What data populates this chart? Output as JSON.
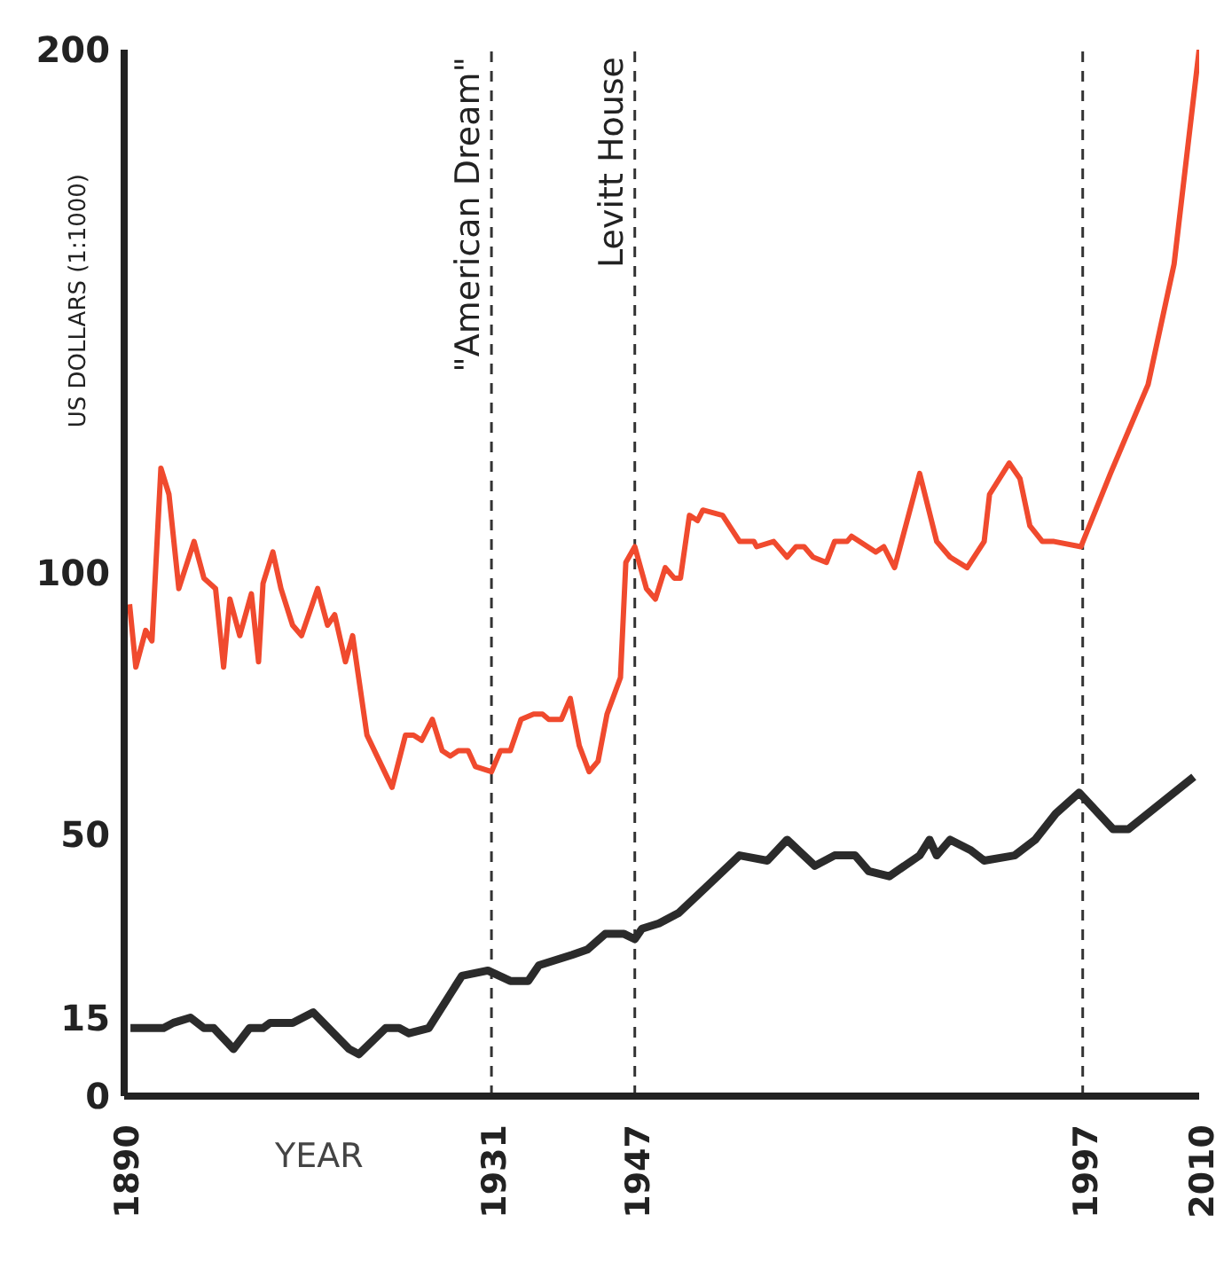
{
  "chart_data": {
    "type": "line",
    "xlabel": "YEAR",
    "ylabel": "US DOLLARS (1:1000)",
    "xlim": [
      1890,
      2010
    ],
    "xticks": [
      1890,
      1931,
      1947,
      1997,
      2010
    ],
    "ylim": [
      0,
      200
    ],
    "yticks": [
      0,
      15,
      50,
      100,
      200
    ],
    "marker": "none",
    "grid": false,
    "series": [
      {
        "color": "#f04a2e",
        "x": [
          1890.6,
          1891.3,
          1892.4,
          1893.1,
          1894.1,
          1895.0,
          1896.1,
          1897.8,
          1898.9,
          1900.2,
          1901.1,
          1901.8,
          1902.9,
          1904.2,
          1905.0,
          1905.5,
          1906.6,
          1907.5,
          1908.8,
          1909.8,
          1911.6,
          1912.7,
          1913.5,
          1914.7,
          1915.5,
          1917.1,
          1919.9,
          1921.4,
          1922.3,
          1923.2,
          1924.4,
          1925.5,
          1926.4,
          1927.3,
          1928.4,
          1929.2,
          1931.0,
          1932.0,
          1933.1,
          1934.3,
          1935.7,
          1936.7,
          1937.4,
          1938.8,
          1939.8,
          1940.8,
          1941.9,
          1942.9,
          1943.9,
          1945.4,
          1946.0,
          1947.0,
          1948.3,
          1949.3,
          1950.4,
          1951.4,
          1952.1,
          1953.1,
          1954.0,
          1954.6,
          1956.8,
          1958.7,
          1960.3,
          1960.6,
          1962.5,
          1964.0,
          1965.0,
          1965.9,
          1966.9,
          1968.4,
          1969.3,
          1970.7,
          1971.2,
          1973.9,
          1974.8,
          1976.0,
          1978.8,
          1980.7,
          1982.2,
          1984.1,
          1986.0,
          1986.6,
          1988.8,
          1990.0,
          1991.1,
          1992.5,
          1993.8,
          1996.8,
          2000.1,
          2004.3,
          2007.2,
          2010.0
        ],
        "values": [
          94,
          82,
          89,
          87,
          120,
          115,
          97,
          106,
          99,
          97,
          82,
          95,
          88,
          96,
          83,
          98,
          104,
          97,
          90,
          88,
          97,
          90,
          92,
          83,
          88,
          69,
          59,
          69,
          69,
          68,
          72,
          66,
          65,
          66,
          66,
          63,
          62,
          66,
          66,
          72,
          73,
          73,
          72,
          72,
          76,
          67,
          62,
          64,
          73,
          80,
          102,
          105,
          97,
          95,
          101,
          99,
          99,
          111,
          110,
          112,
          111,
          106,
          106,
          105,
          106,
          103,
          105,
          105,
          103,
          102,
          106,
          106,
          107,
          104,
          105,
          101,
          119,
          106,
          103,
          101,
          106,
          115,
          121,
          118,
          109,
          106,
          106,
          105,
          119,
          136,
          159,
          200
        ]
      },
      {
        "color": "#2b2b2b",
        "x": [
          1890.7,
          1894.4,
          1895.5,
          1897.4,
          1898.9,
          1900.0,
          1902.2,
          1904.0,
          1905.5,
          1906.3,
          1908.8,
          1911.1,
          1915.1,
          1916.2,
          1919.2,
          1920.7,
          1921.8,
          1924.0,
          1927.7,
          1930.6,
          1933.1,
          1935.1,
          1936.3,
          1940.0,
          1941.7,
          1943.7,
          1945.8,
          1947.0,
          1947.8,
          1949.7,
          1951.9,
          1955.0,
          1958.7,
          1961.8,
          1964.0,
          1967.1,
          1969.3,
          1971.6,
          1973.1,
          1975.4,
          1978.8,
          1979.9,
          1980.7,
          1982.2,
          1984.5,
          1986.0,
          1989.4,
          1991.7,
          1994.0,
          1996.6,
          2000.4,
          2002.1,
          2009.4
        ],
        "values": [
          13,
          13,
          14,
          15,
          13,
          13,
          9,
          13,
          13,
          14,
          14,
          16,
          9,
          8,
          13,
          13,
          12,
          13,
          23,
          24,
          22,
          22,
          25,
          27,
          28,
          31,
          31,
          30,
          32,
          33,
          35,
          40,
          46,
          45,
          49,
          44,
          46,
          46,
          43,
          42,
          46,
          49,
          46,
          49,
          47,
          45,
          46,
          49,
          54,
          58,
          51,
          51,
          61
        ]
      }
    ],
    "ref_lines": [
      {
        "axis": "x",
        "value": 1931,
        "label": "\"American Dream\"",
        "line_style": "dashed"
      },
      {
        "axis": "x",
        "value": 1947,
        "label": "Levitt House",
        "line_style": "dashed"
      },
      {
        "axis": "x",
        "value": 1997,
        "label": null,
        "line_style": "dashed"
      }
    ]
  }
}
